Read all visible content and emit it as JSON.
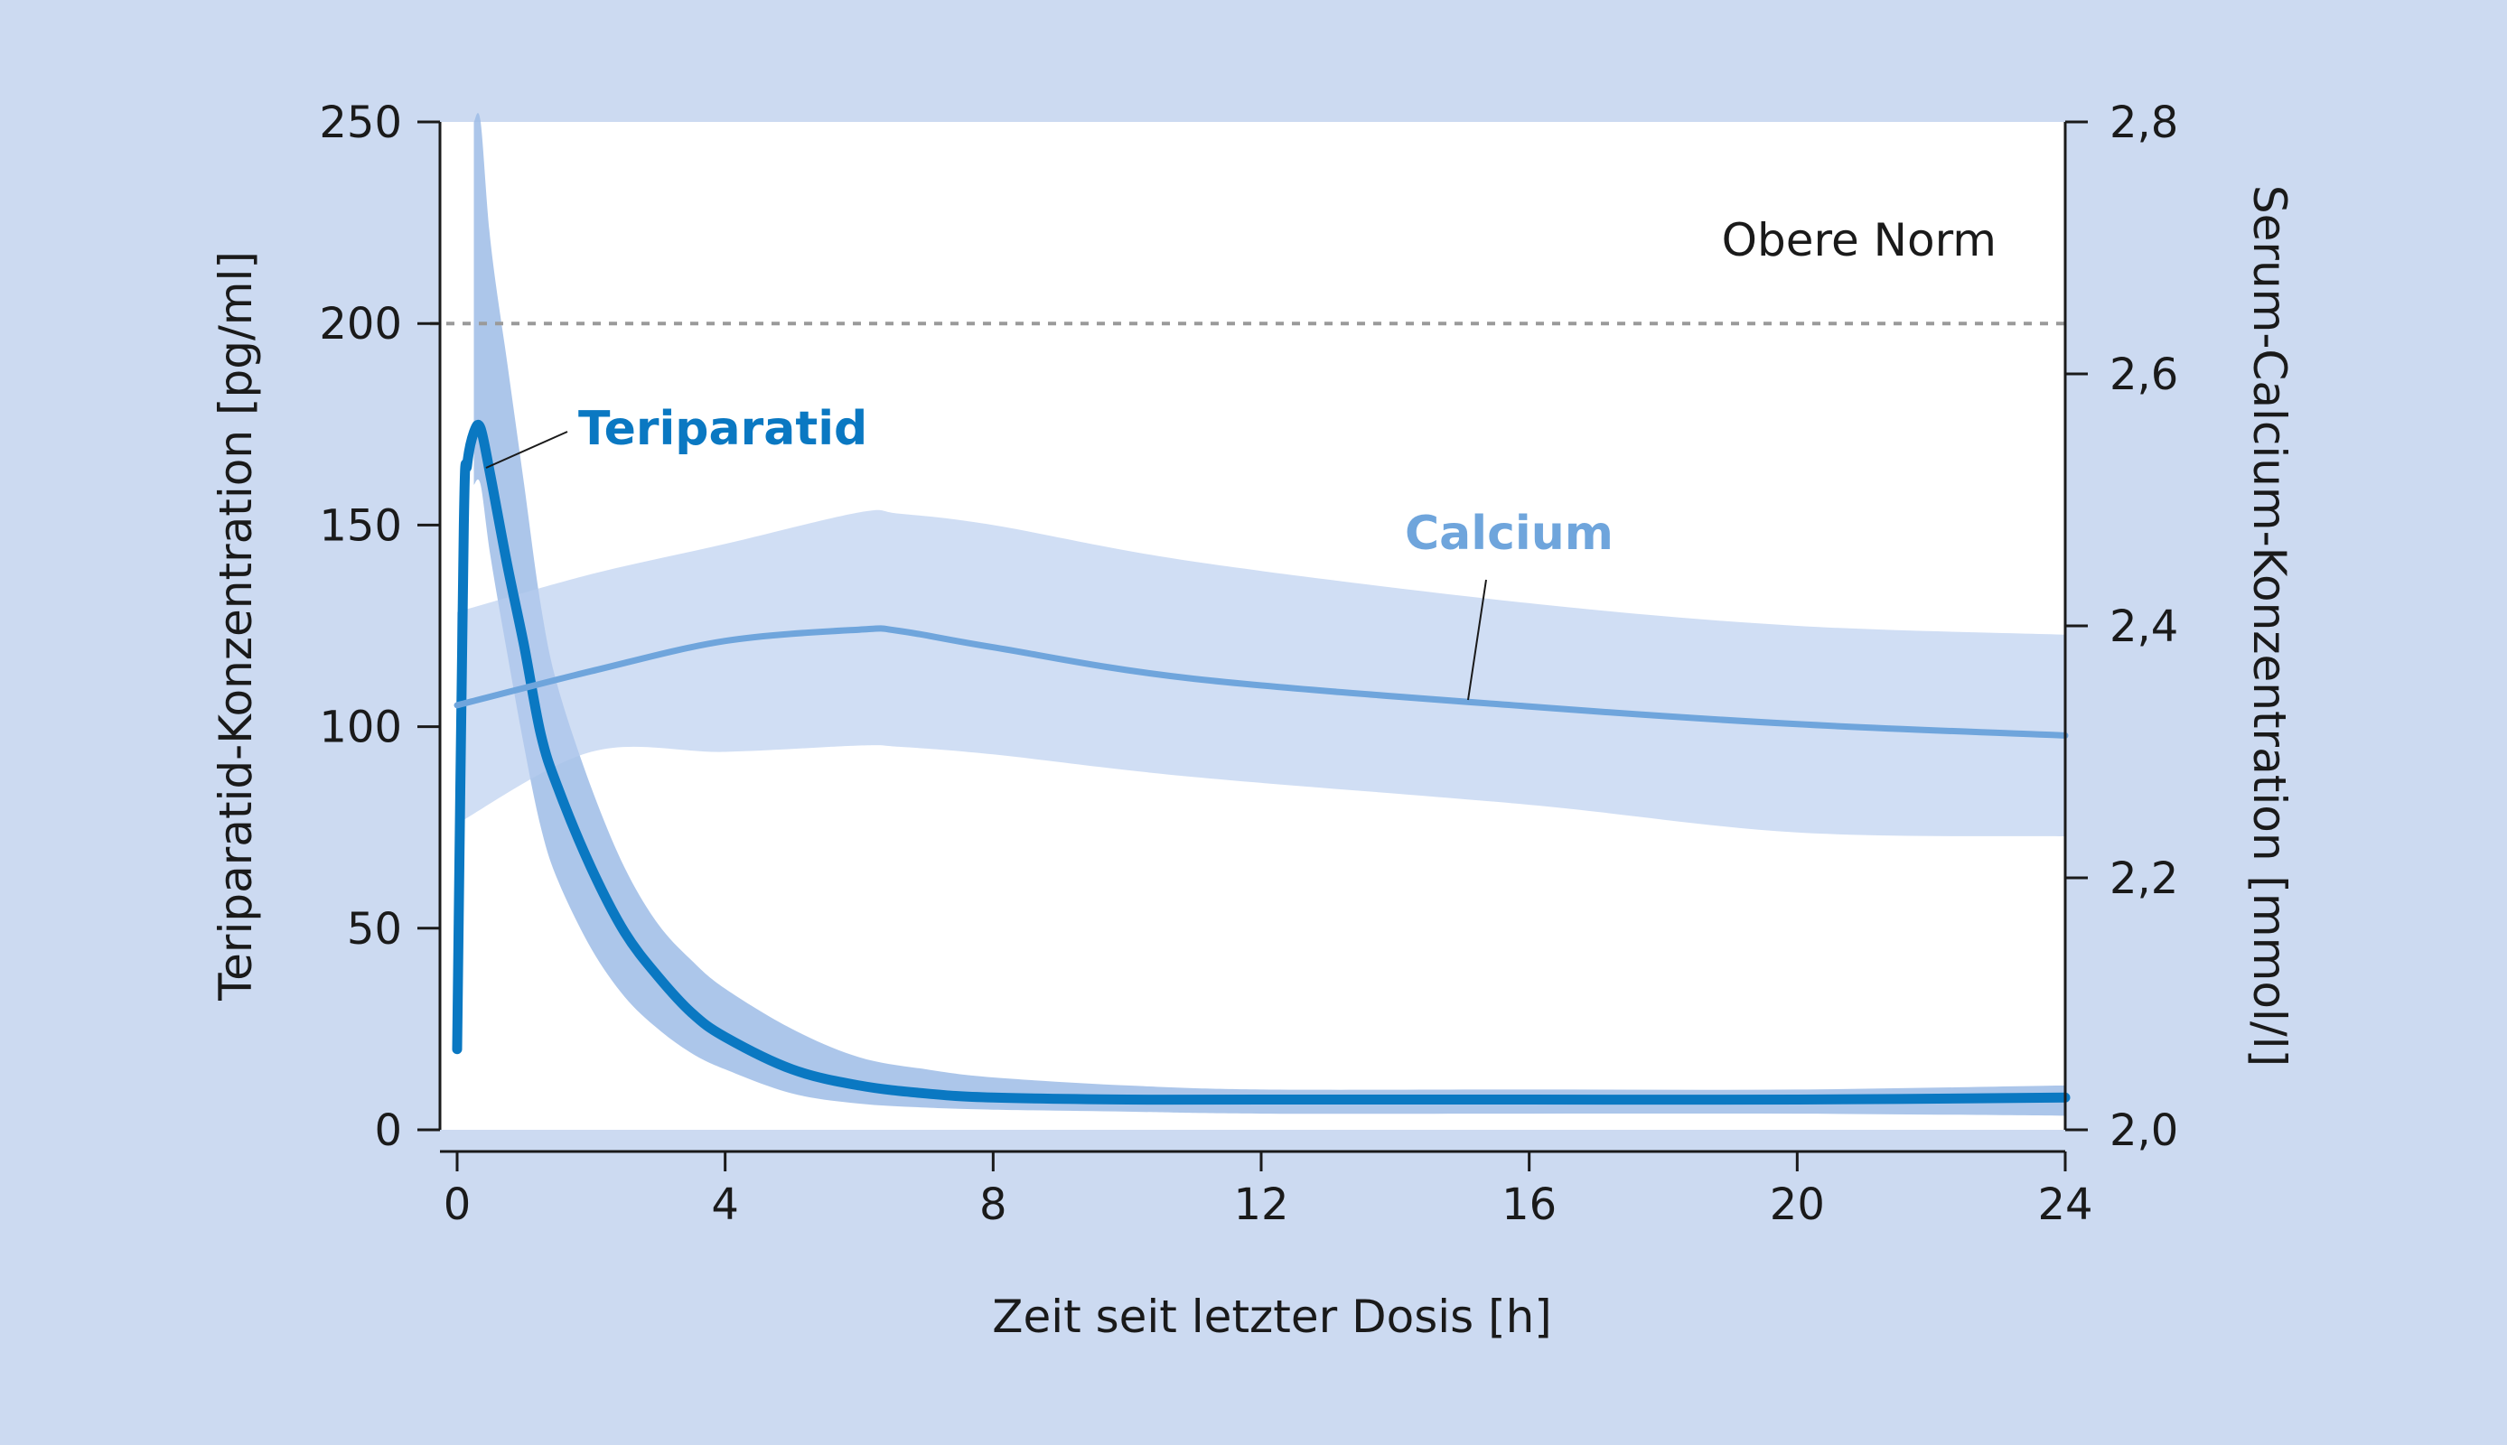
{
  "chart_data": {
    "type": "line",
    "xlabel": "Zeit seit letzter Dosis [h]",
    "ylabel_left": "Teriparatid-Konzentration [pg/ml]",
    "ylabel_right": "Serum-Calcium-Konzentration [mmol/l]",
    "xlim": [
      0,
      24
    ],
    "ylim_left": [
      0,
      250
    ],
    "ylim_right": [
      2.0,
      2.8
    ],
    "x_ticks": [
      "0",
      "4",
      "8",
      "12",
      "16",
      "20",
      "24"
    ],
    "y_left_ticks": [
      "0",
      "50",
      "100",
      "150",
      "200",
      "250"
    ],
    "y_right_ticks": [
      "2,0",
      "2,2",
      "2,4",
      "2,6",
      "2,8"
    ],
    "grid": false,
    "reference_line": {
      "label": "Obere Norm",
      "y_left": 200
    },
    "series": [
      {
        "name": "Teriparatid",
        "axis": "left",
        "color": "#0a78c2",
        "band_color": "#9dbce6",
        "x": [
          0,
          0.1,
          0.15,
          0.25,
          0.35,
          0.5,
          0.75,
          1.0,
          1.25,
          1.5,
          2,
          2.5,
          3,
          3.5,
          4,
          5,
          6,
          7,
          8,
          10,
          12,
          16,
          20,
          24
        ],
        "y": [
          20,
          150,
          165,
          173,
          174,
          162,
          140,
          120,
          98,
          85,
          65,
          49,
          38,
          29,
          23,
          15,
          11,
          9,
          8,
          7.5,
          7.5,
          7.5,
          7.5,
          8
        ],
        "upper": [
          null,
          null,
          null,
          260,
          250,
          220,
          190,
          160,
          130,
          110,
          85,
          65,
          51,
          42,
          35,
          25,
          18,
          15,
          13,
          11,
          10,
          10,
          10,
          11
        ],
        "lower": [
          null,
          null,
          null,
          160,
          160,
          142,
          118,
          95,
          75,
          62,
          45,
          33,
          25,
          19,
          15,
          9,
          6.5,
          5.5,
          5,
          4.5,
          4,
          4,
          4,
          3.5
        ]
      },
      {
        "name": "Calcium",
        "axis": "right",
        "color": "#6fa5dc",
        "band_color": "#b7cdee",
        "x": [
          0,
          2,
          4,
          6,
          6.6,
          8,
          11,
          16,
          20,
          24
        ],
        "y": [
          2.337,
          2.364,
          2.388,
          2.397,
          2.396,
          2.383,
          2.358,
          2.336,
          2.322,
          2.313
        ],
        "upper": [
          2.411,
          2.441,
          2.465,
          2.49,
          2.489,
          2.48,
          2.451,
          2.418,
          2.4,
          2.393
        ],
        "lower": [
          2.243,
          2.3,
          2.3,
          2.305,
          2.304,
          2.298,
          2.28,
          2.258,
          2.236,
          2.233
        ]
      }
    ]
  }
}
